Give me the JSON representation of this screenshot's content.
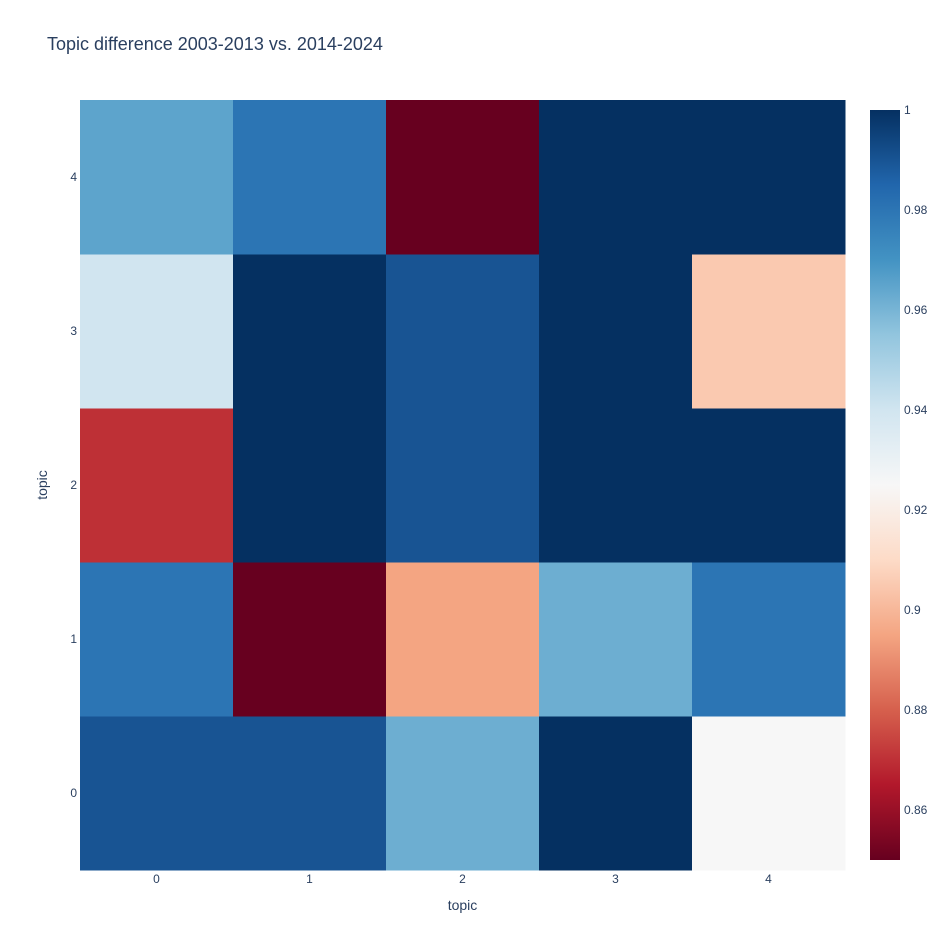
{
  "chart_data": {
    "type": "heatmap",
    "title": "Topic difference 2003-2013 vs. 2014-2024",
    "xlabel": "topic",
    "ylabel": "topic",
    "x_categories": [
      "0",
      "1",
      "2",
      "3",
      "4"
    ],
    "y_categories": [
      "0",
      "1",
      "2",
      "3",
      "4"
    ],
    "z": [
      [
        0.99,
        0.99,
        0.962,
        1.0,
        0.925
      ],
      [
        0.98,
        0.85,
        0.895,
        0.962,
        0.98
      ],
      [
        0.87,
        1.0,
        0.99,
        1.0,
        1.0
      ],
      [
        0.94,
        1.0,
        0.99,
        1.0,
        0.905
      ],
      [
        0.965,
        0.98,
        0.85,
        1.0,
        1.0
      ]
    ],
    "colorscale": "RdBu",
    "zlim": [
      0.85,
      1.0
    ],
    "colorbar_ticks": [
      "0.86",
      "0.88",
      "0.9",
      "0.92",
      "0.94",
      "0.96",
      "0.98",
      "1"
    ],
    "colorbar_tick_values": [
      0.86,
      0.88,
      0.9,
      0.92,
      0.94,
      0.96,
      0.98,
      1.0
    ]
  }
}
